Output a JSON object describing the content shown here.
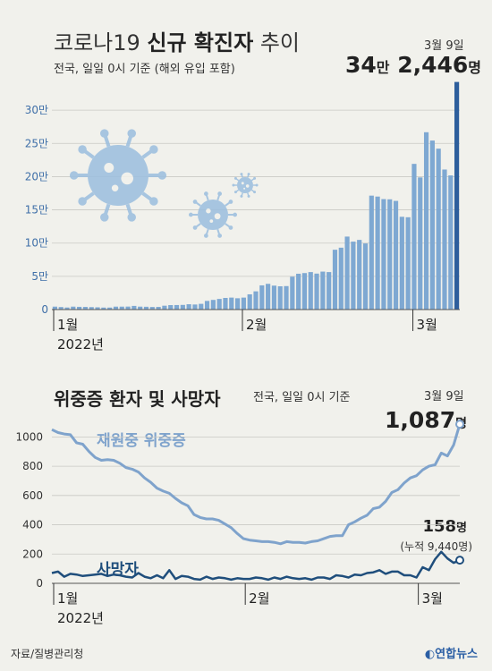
{
  "chart_data": [
    {
      "type": "bar",
      "title": "코로나19 신규 확진자 추이",
      "title_light": "코로나19",
      "title_bold": "신규 확진자",
      "title_suffix": "추이",
      "subtitle": "전국, 일일 0시 기준 (해외 유입 포함)",
      "highlight_date": "3월 9일",
      "highlight_value_parts": [
        "34",
        "만",
        " 2,446",
        "명"
      ],
      "ylim": [
        0,
        350000
      ],
      "yticks": [
        0,
        50000,
        100000,
        150000,
        200000,
        250000,
        300000
      ],
      "ytick_labels": [
        "0",
        "5만",
        "10만",
        "15만",
        "20만",
        "25만",
        "30만"
      ],
      "xtick_labels": [
        "1월",
        "2월",
        "3월"
      ],
      "xtick_index": [
        0,
        31,
        59
      ],
      "year_label": "2022년",
      "start_date": "2022-01-01",
      "end_date": "2022-03-09",
      "bar_color": "#7ea8d2",
      "highlight_color": "#2d5e9c",
      "values": [
        4400,
        3800,
        3100,
        4400,
        4100,
        4000,
        3700,
        3400,
        3000,
        3000,
        4400,
        4400,
        4500,
        5500,
        4400,
        4200,
        3900,
        4000,
        5800,
        6700,
        6800,
        7000,
        8000,
        7600,
        8600,
        13000,
        14500,
        16000,
        17500,
        18000,
        17000,
        18000,
        22900,
        27400,
        36400,
        38700,
        36000,
        35000,
        35300,
        49500,
        53900,
        54900,
        56400,
        54100,
        57100,
        56400,
        90000,
        93100,
        109800,
        102200,
        104800,
        99500,
        171400,
        170000,
        166200,
        165900,
        163500,
        139600,
        138900,
        219200,
        198800,
        266800,
        254300,
        242100,
        210700,
        201800,
        342446
      ]
    },
    {
      "type": "line",
      "title": "위중증 환자 및 사망자",
      "subtitle": "전국, 일일 0시 기준",
      "highlight_date": "3월 9일",
      "ylim": [
        0,
        1100
      ],
      "yticks": [
        0,
        200,
        400,
        600,
        800,
        1000
      ],
      "ytick_labels": [
        "0",
        "200",
        "400",
        "600",
        "800",
        "1000"
      ],
      "xtick_labels": [
        "1월",
        "2월",
        "3월"
      ],
      "xtick_index": [
        0,
        31,
        59
      ],
      "year_label": "2022년",
      "series": [
        {
          "name": "재원중 위중증",
          "color": "#7fa3cc",
          "last_value_parts": [
            "1,087",
            "명"
          ],
          "values": [
            1050,
            1030,
            1020,
            1015,
            960,
            950,
            900,
            860,
            840,
            845,
            840,
            820,
            790,
            780,
            760,
            720,
            690,
            650,
            630,
            615,
            580,
            550,
            530,
            470,
            450,
            440,
            440,
            430,
            405,
            380,
            340,
            305,
            295,
            290,
            285,
            285,
            280,
            270,
            285,
            280,
            280,
            275,
            285,
            290,
            305,
            320,
            325,
            325,
            400,
            420,
            445,
            465,
            510,
            520,
            560,
            620,
            640,
            685,
            720,
            735,
            775,
            800,
            810,
            890,
            870,
            945,
            1087
          ]
        },
        {
          "name": "사망자",
          "color": "#1f4e7c",
          "last_value_parts": [
            "158",
            "명"
          ],
          "cumulative_label": "(누적 9,440명)",
          "values": [
            70,
            80,
            45,
            65,
            60,
            50,
            55,
            60,
            65,
            50,
            60,
            55,
            45,
            40,
            70,
            45,
            35,
            55,
            35,
            90,
            30,
            50,
            45,
            30,
            25,
            45,
            30,
            40,
            35,
            25,
            35,
            30,
            30,
            40,
            35,
            25,
            40,
            30,
            45,
            35,
            30,
            35,
            25,
            40,
            40,
            30,
            55,
            50,
            40,
            60,
            55,
            70,
            75,
            90,
            65,
            80,
            80,
            55,
            55,
            40,
            110,
            90,
            165,
            215,
            170,
            140,
            158
          ]
        }
      ]
    }
  ],
  "source": "자료/질병관리청",
  "logo": "연합뉴스",
  "icons": [
    "virus-icon"
  ]
}
